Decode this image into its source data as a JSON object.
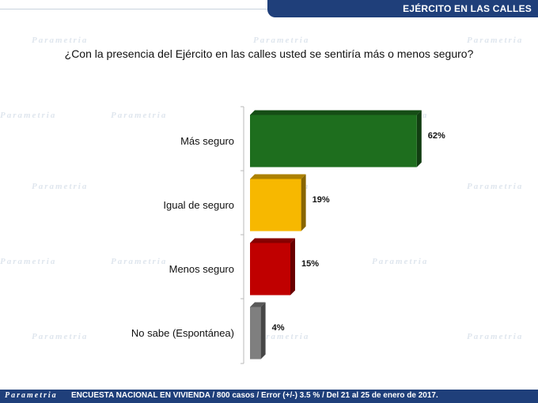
{
  "header": {
    "title": "EJÉRCITO EN LAS CALLES"
  },
  "question": "¿Con la presencia del Ejército en las calles usted se sentiría más o menos seguro?",
  "footer": {
    "brand": "Parametria",
    "note": "ENCUESTA NACIONAL EN VIVIENDA / 800 casos / Error (+/-) 3.5 % / Del 21 al 25 de enero de 2017."
  },
  "watermark": {
    "word": "Parametria"
  },
  "colors": {
    "header_bg": "#1f3f7a",
    "bar_green": "#1e6e1e",
    "bar_yellow": "#f7b800",
    "bar_red": "#c00000",
    "bar_gray": "#7f7f7f"
  },
  "chart_data": {
    "type": "bar",
    "orientation": "horizontal",
    "title": "¿Con la presencia del Ejército en las calles usted se sentiría más o menos seguro?",
    "categories": [
      "Más seguro",
      "Igual de seguro",
      "Menos seguro",
      "No sabe (Espontánea)"
    ],
    "values": [
      62,
      19,
      15,
      4
    ],
    "value_labels": [
      "62%",
      "19%",
      "15%",
      "4%"
    ],
    "bar_colors": [
      "#1e6e1e",
      "#f7b800",
      "#c00000",
      "#7f7f7f"
    ],
    "xlim": [
      0,
      100
    ],
    "xlabel": "",
    "ylabel": "",
    "grid": false,
    "legend": "none"
  }
}
